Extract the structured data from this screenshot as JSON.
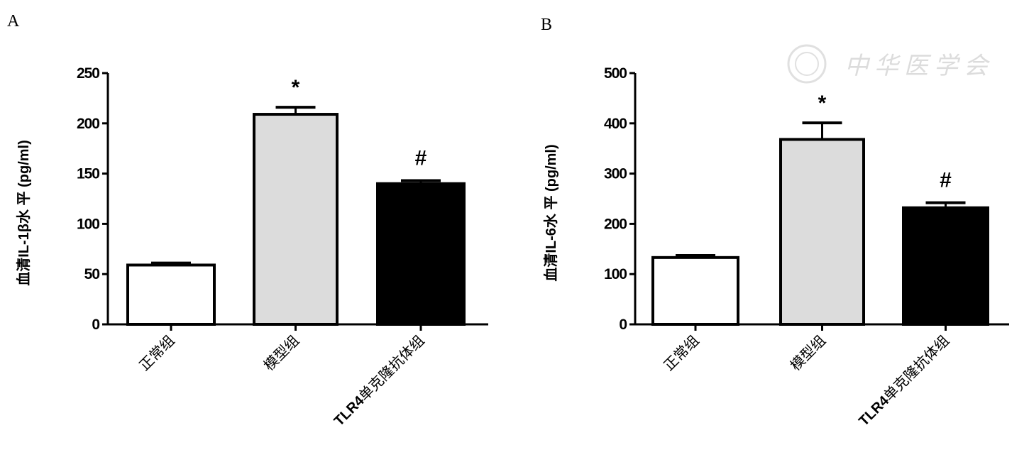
{
  "watermark": "中华医学会",
  "chart_data": [
    {
      "type": "bar",
      "panel": "A",
      "ylabel": "血清IL-1β水 平 (pg/ml)",
      "ylim": [
        0,
        250
      ],
      "yticks": [
        0,
        50,
        100,
        150,
        200,
        250
      ],
      "categories": [
        "正常组",
        "模型组",
        "TLR4单克隆抗体组"
      ],
      "values": [
        59,
        209,
        140
      ],
      "errors": [
        2,
        7,
        3
      ],
      "fills": [
        "#ffffff",
        "#dcdcdc",
        "#000000"
      ],
      "annotations": [
        "",
        "*",
        "#"
      ]
    },
    {
      "type": "bar",
      "panel": "B",
      "ylabel": "血清IL-6水 平 (pg/ml)",
      "ylim": [
        0,
        500
      ],
      "yticks": [
        0,
        100,
        200,
        300,
        400,
        500
      ],
      "categories": [
        "正常组",
        "模型组",
        "TLR4单克隆抗体组"
      ],
      "values": [
        133,
        368,
        232
      ],
      "errors": [
        4,
        33,
        10
      ],
      "fills": [
        "#ffffff",
        "#dcdcdc",
        "#000000"
      ],
      "annotations": [
        "",
        "*",
        "#"
      ]
    }
  ]
}
